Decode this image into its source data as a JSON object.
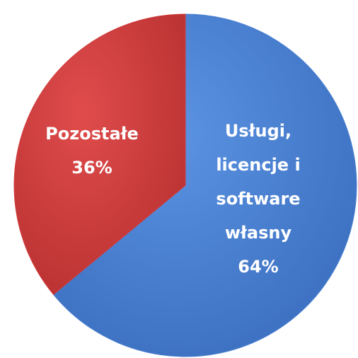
{
  "chart_data": {
    "type": "pie",
    "categories": [
      "Usługi, licencje i software własny",
      "Pozostałe"
    ],
    "values": [
      64,
      36
    ],
    "value_labels": [
      "64%",
      "36%"
    ],
    "colors": [
      "#4a80d2",
      "#d13c3c"
    ],
    "start_angle": 90,
    "direction": "clockwise"
  }
}
